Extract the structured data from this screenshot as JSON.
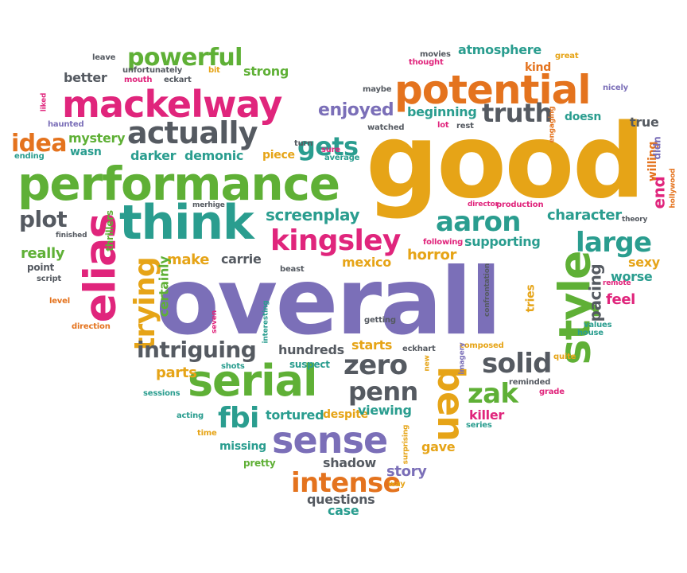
{
  "colors": {
    "purple": "#7b6fb8",
    "gold": "#e6a417",
    "teal": "#2a9d8f",
    "magenta": "#e0257c",
    "green": "#5fb036",
    "grey": "#555a61",
    "orange": "#e4731e"
  },
  "words": [
    {
      "text": "good",
      "color": "gold"
    },
    {
      "text": "overall",
      "color": "purple"
    },
    {
      "text": "performance",
      "color": "green"
    },
    {
      "text": "potential",
      "color": "orange"
    },
    {
      "text": "mackelway",
      "color": "magenta"
    },
    {
      "text": "think",
      "color": "teal"
    },
    {
      "text": "serial",
      "color": "green"
    },
    {
      "text": "sense",
      "color": "purple"
    },
    {
      "text": "style",
      "color": "green"
    },
    {
      "text": "elias",
      "color": "magenta"
    },
    {
      "text": "actually",
      "color": "grey"
    },
    {
      "text": "kingsley",
      "color": "magenta"
    },
    {
      "text": "aaron",
      "color": "teal"
    },
    {
      "text": "large",
      "color": "teal"
    },
    {
      "text": "ben",
      "color": "gold"
    },
    {
      "text": "trying",
      "color": "gold"
    },
    {
      "text": "intense",
      "color": "orange"
    },
    {
      "text": "solid",
      "color": "grey"
    },
    {
      "text": "zero",
      "color": "grey"
    },
    {
      "text": "penn",
      "color": "grey"
    },
    {
      "text": "truth",
      "color": "grey"
    },
    {
      "text": "intriguing",
      "color": "grey"
    },
    {
      "text": "powerful",
      "color": "green"
    },
    {
      "text": "gets",
      "color": "teal"
    },
    {
      "text": "idea",
      "color": "orange"
    },
    {
      "text": "fbi",
      "color": "teal"
    },
    {
      "text": "zak",
      "color": "green"
    },
    {
      "text": "plot",
      "color": "grey"
    },
    {
      "text": "enjoyed",
      "color": "purple"
    },
    {
      "text": "screenplay",
      "color": "teal"
    },
    {
      "text": "character",
      "color": "teal"
    },
    {
      "text": "atmosphere",
      "color": "teal"
    },
    {
      "text": "beginning",
      "color": "teal"
    },
    {
      "text": "mystery",
      "color": "green"
    },
    {
      "text": "darker",
      "color": "teal"
    },
    {
      "text": "demonic",
      "color": "teal"
    },
    {
      "text": "make",
      "color": "gold"
    },
    {
      "text": "carrie",
      "color": "grey"
    },
    {
      "text": "mexico",
      "color": "gold"
    },
    {
      "text": "horror",
      "color": "gold"
    },
    {
      "text": "supporting",
      "color": "teal"
    },
    {
      "text": "pacing",
      "color": "grey"
    },
    {
      "text": "worse",
      "color": "teal"
    },
    {
      "text": "feel",
      "color": "magenta"
    },
    {
      "text": "sexy",
      "color": "gold"
    },
    {
      "text": "really",
      "color": "green"
    },
    {
      "text": "certainly",
      "color": "green"
    },
    {
      "text": "tortured",
      "color": "teal"
    },
    {
      "text": "despite",
      "color": "gold"
    },
    {
      "text": "viewing",
      "color": "teal"
    },
    {
      "text": "killer",
      "color": "magenta"
    },
    {
      "text": "hundreds",
      "color": "grey"
    },
    {
      "text": "starts",
      "color": "gold"
    },
    {
      "text": "parts",
      "color": "gold"
    },
    {
      "text": "story",
      "color": "purple"
    },
    {
      "text": "shadow",
      "color": "grey"
    },
    {
      "text": "questions",
      "color": "grey"
    },
    {
      "text": "case",
      "color": "teal"
    },
    {
      "text": "gave",
      "color": "gold"
    },
    {
      "text": "missing",
      "color": "teal"
    },
    {
      "text": "pretty",
      "color": "green"
    },
    {
      "text": "strong",
      "color": "green"
    },
    {
      "text": "better",
      "color": "grey"
    },
    {
      "text": "doesn",
      "color": "teal"
    },
    {
      "text": "true",
      "color": "grey"
    },
    {
      "text": "piece",
      "color": "gold"
    },
    {
      "text": "wasn",
      "color": "teal"
    },
    {
      "text": "tries",
      "color": "gold"
    },
    {
      "text": "end",
      "color": "magenta"
    },
    {
      "text": "willing",
      "color": "orange"
    },
    {
      "text": "didn",
      "color": "purple"
    },
    {
      "text": "kind",
      "color": "orange"
    },
    {
      "text": "haunted",
      "color": "purple"
    },
    {
      "text": "point",
      "color": "grey"
    },
    {
      "text": "script",
      "color": "grey"
    },
    {
      "text": "thrillers",
      "color": "green"
    },
    {
      "text": "finished",
      "color": "grey"
    },
    {
      "text": "beast",
      "color": "grey"
    },
    {
      "text": "following",
      "color": "magenta"
    },
    {
      "text": "confrontation",
      "color": "grey"
    },
    {
      "text": "composed",
      "color": "gold"
    },
    {
      "text": "eckhart",
      "color": "grey"
    },
    {
      "text": "suspect",
      "color": "teal"
    },
    {
      "text": "shots",
      "color": "teal"
    },
    {
      "text": "sessions",
      "color": "teal"
    },
    {
      "text": "acting",
      "color": "teal"
    },
    {
      "text": "time",
      "color": "gold"
    },
    {
      "text": "surprising",
      "color": "gold"
    },
    {
      "text": "way",
      "color": "gold"
    },
    {
      "text": "imagery",
      "color": "purple"
    },
    {
      "text": "new",
      "color": "gold"
    },
    {
      "text": "reminded",
      "color": "grey"
    },
    {
      "text": "grade",
      "color": "magenta"
    },
    {
      "text": "series",
      "color": "teal"
    },
    {
      "text": "quite",
      "color": "gold"
    },
    {
      "text": "values",
      "color": "teal"
    },
    {
      "text": "house",
      "color": "teal"
    },
    {
      "text": "remote",
      "color": "magenta"
    },
    {
      "text": "theory",
      "color": "grey"
    },
    {
      "text": "hollywood",
      "color": "orange"
    },
    {
      "text": "production",
      "color": "magenta"
    },
    {
      "text": "director",
      "color": "magenta"
    },
    {
      "text": "lot",
      "color": "magenta"
    },
    {
      "text": "rest",
      "color": "grey"
    },
    {
      "text": "watched",
      "color": "grey"
    },
    {
      "text": "engaging",
      "color": "orange"
    },
    {
      "text": "nicely",
      "color": "purple"
    },
    {
      "text": "great",
      "color": "gold"
    },
    {
      "text": "movies",
      "color": "grey"
    },
    {
      "text": "thought",
      "color": "magenta"
    },
    {
      "text": "maybe",
      "color": "grey"
    },
    {
      "text": "sure",
      "color": "magenta"
    },
    {
      "text": "turn",
      "color": "grey"
    },
    {
      "text": "average",
      "color": "teal"
    },
    {
      "text": "leave",
      "color": "grey"
    },
    {
      "text": "unfortunately",
      "color": "grey"
    },
    {
      "text": "bit",
      "color": "gold"
    },
    {
      "text": "mouth",
      "color": "magenta"
    },
    {
      "text": "eckart",
      "color": "grey"
    },
    {
      "text": "liked",
      "color": "magenta"
    },
    {
      "text": "ending",
      "color": "teal"
    },
    {
      "text": "merhige",
      "color": "grey"
    },
    {
      "text": "level",
      "color": "orange"
    },
    {
      "text": "direction",
      "color": "orange"
    },
    {
      "text": "seven",
      "color": "magenta"
    },
    {
      "text": "interesting",
      "color": "teal"
    },
    {
      "text": "getting",
      "color": "grey"
    }
  ]
}
